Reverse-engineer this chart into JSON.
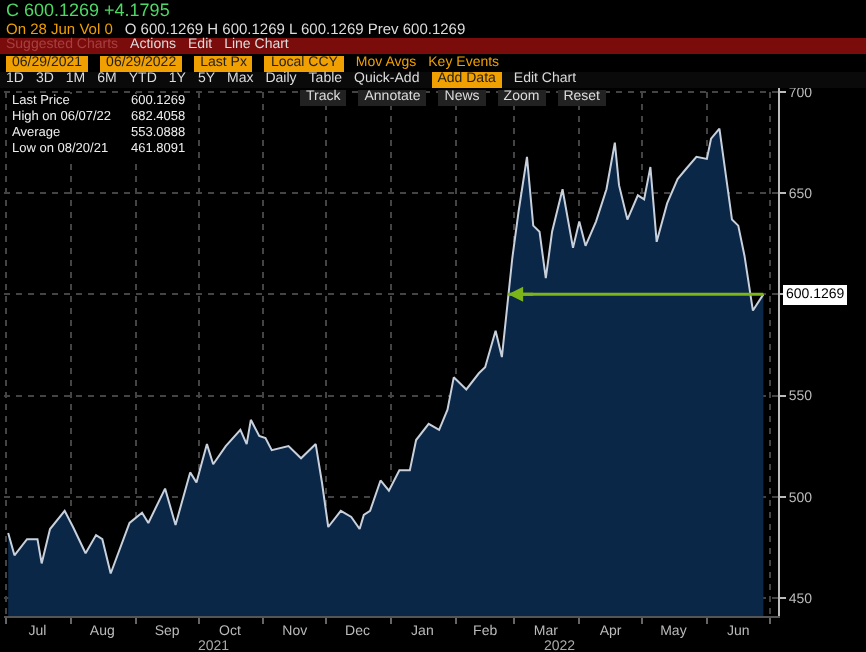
{
  "chart_data": {
    "type": "area",
    "x": [
      "2021-07-02",
      "2021-07-05",
      "2021-07-11",
      "2021-07-16",
      "2021-07-18",
      "2021-07-22",
      "2021-07-29",
      "2021-08-02",
      "2021-08-08",
      "2021-08-13",
      "2021-08-16",
      "2021-08-20",
      "2021-08-29",
      "2021-09-04",
      "2021-09-07",
      "2021-09-15",
      "2021-09-20",
      "2021-09-27",
      "2021-09-30",
      "2021-10-05",
      "2021-10-08",
      "2021-10-14",
      "2021-10-21",
      "2021-10-24",
      "2021-10-26",
      "2021-10-30",
      "2021-11-02",
      "2021-11-05",
      "2021-11-13",
      "2021-11-19",
      "2021-11-26",
      "2021-11-29",
      "2021-12-02",
      "2021-12-08",
      "2021-12-13",
      "2021-12-17",
      "2021-12-19",
      "2021-12-22",
      "2021-12-27",
      "2021-12-31",
      "2022-01-05",
      "2022-01-10",
      "2022-01-13",
      "2022-01-19",
      "2022-01-24",
      "2022-01-28",
      "2022-01-31",
      "2022-02-06",
      "2022-02-12",
      "2022-02-15",
      "2022-02-20",
      "2022-02-23",
      "2022-02-28",
      "2022-03-03",
      "2022-03-07",
      "2022-03-10",
      "2022-03-13",
      "2022-03-16",
      "2022-03-19",
      "2022-03-24",
      "2022-03-29",
      "2022-04-01",
      "2022-04-04",
      "2022-04-09",
      "2022-04-14",
      "2022-04-18",
      "2022-04-20",
      "2022-04-24",
      "2022-04-29",
      "2022-05-02",
      "2022-05-05",
      "2022-05-08",
      "2022-05-13",
      "2022-05-18",
      "2022-05-22",
      "2022-05-27",
      "2022-06-01",
      "2022-06-03",
      "2022-06-07",
      "2022-06-13",
      "2022-06-16",
      "2022-06-19",
      "2022-06-23",
      "2022-06-28"
    ],
    "series": [
      {
        "color": "#c8d0dc",
        "values": [
          482,
          471,
          479,
          479,
          467,
          484,
          493,
          485,
          472,
          481,
          479,
          462,
          487,
          492,
          487,
          504,
          486,
          512,
          507,
          526,
          516,
          525,
          533,
          526,
          538,
          530,
          529,
          523,
          525,
          519,
          526,
          507,
          485,
          493,
          490,
          484,
          491,
          493,
          508,
          503,
          513,
          513,
          528,
          536,
          533,
          543,
          559,
          553,
          561,
          564,
          582,
          569,
          618,
          641,
          668,
          634,
          631,
          608,
          631,
          652,
          623,
          636,
          624,
          636,
          652,
          675,
          654,
          637,
          649,
          647,
          663,
          626,
          645,
          657,
          662,
          668,
          667,
          677,
          682,
          637,
          634,
          619,
          592,
          600
        ]
      }
    ],
    "xlim": [
      "2021-06-30",
      "2022-07-05"
    ],
    "xticks": [
      {
        "value": "2021-07-01",
        "label": null
      },
      {
        "value": "2021-07-16",
        "label": "Jul"
      },
      {
        "value": "2021-08-01",
        "label": null
      },
      {
        "value": "2021-08-16",
        "label": "Aug"
      },
      {
        "value": "2021-09-01",
        "label": null
      },
      {
        "value": "2021-09-16",
        "label": "Sep"
      },
      {
        "value": "2021-10-01",
        "label": null
      },
      {
        "value": "2021-10-16",
        "label": "Oct"
      },
      {
        "value": "2021-11-01",
        "label": null
      },
      {
        "value": "2021-11-16",
        "label": "Nov"
      },
      {
        "value": "2021-12-01",
        "label": null
      },
      {
        "value": "2021-12-16",
        "label": "Dec"
      },
      {
        "value": "2022-01-01",
        "label": null
      },
      {
        "value": "2022-01-16",
        "label": "Jan"
      },
      {
        "value": "2022-02-01",
        "label": null
      },
      {
        "value": "2022-02-15",
        "label": "Feb"
      },
      {
        "value": "2022-03-01",
        "label": null
      },
      {
        "value": "2022-03-16",
        "label": "Mar"
      },
      {
        "value": "2022-04-01",
        "label": null
      },
      {
        "value": "2022-04-16",
        "label": "Apr"
      },
      {
        "value": "2022-05-01",
        "label": null
      },
      {
        "value": "2022-05-16",
        "label": "May"
      },
      {
        "value": "2022-06-01",
        "label": null
      },
      {
        "value": "2022-06-16",
        "label": "Jun"
      },
      {
        "value": "2022-07-01",
        "label": null
      }
    ],
    "ylim": [
      441,
      706
    ],
    "yticks": [
      450,
      500,
      550,
      {
        "value": 600,
        "label": null
      },
      650,
      700
    ],
    "grid": true,
    "ref_lines": [
      {
        "axis": "y",
        "value": 600.1269,
        "label": "600.1269",
        "color": "#7cb518"
      }
    ],
    "annotations": [
      "C 600.1269 +4.1795",
      "On 28 Jun Vol 0",
      "O 600.1269 H 600.1269 L 600.1269 Prev 600.1269",
      "Suggested Charts",
      "Actions",
      "Edit",
      "Line Chart",
      "06/29/2021",
      "06/29/2022",
      "Last Px",
      "Local CCY",
      "Mov Avgs",
      "Key Events",
      "1D",
      "3D",
      "1M",
      "6M",
      "YTD",
      "1Y",
      "5Y",
      "Max",
      "Daily",
      "Table",
      "Quick-Add",
      "Add Data",
      "Edit Chart",
      "Track",
      "Annotate",
      "News",
      "Zoom",
      "Reset",
      "Last Price",
      "600.1269",
      "High on 06/07/22",
      "682.4058",
      "Average",
      "553.0888",
      "Low on 08/20/21",
      "461.8091",
      "2021",
      "2022"
    ]
  }
}
